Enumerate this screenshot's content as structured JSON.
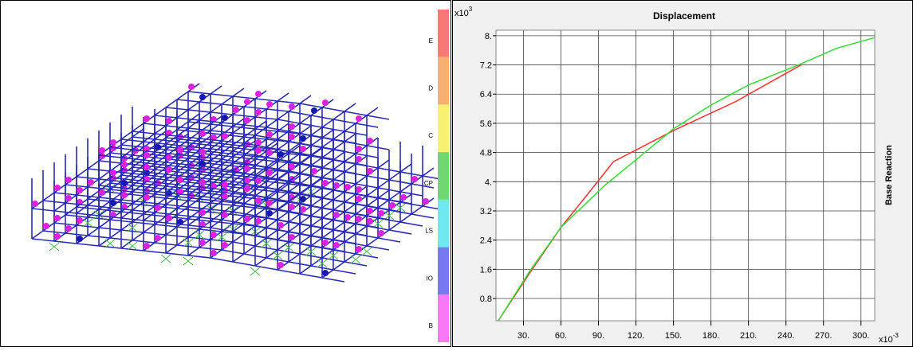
{
  "hinge_legend": {
    "labels": [
      "E",
      "D",
      "C",
      "CP",
      "LS",
      "IO",
      "B"
    ],
    "colors": [
      "#f87878",
      "#f8b070",
      "#f8f070",
      "#70d870",
      "#70e8f0",
      "#7878f0",
      "#f878f8"
    ]
  },
  "chart_data": {
    "type": "line",
    "title": "Displacement",
    "y_label": "Base Reaction",
    "y_multiplier": {
      "base": "x10",
      "exponent": "3"
    },
    "x_multiplier": {
      "base": "x10",
      "exponent": "-3"
    },
    "xlim": [
      8,
      311
    ],
    "ylim": [
      0.19,
      8.15
    ],
    "xticks": [
      {
        "value": 30,
        "label": "30."
      },
      {
        "value": 60,
        "label": "60."
      },
      {
        "value": 90,
        "label": "90."
      },
      {
        "value": 120,
        "label": "120."
      },
      {
        "value": 150,
        "label": "150."
      },
      {
        "value": 180,
        "label": "180."
      },
      {
        "value": 210,
        "label": "210."
      },
      {
        "value": 240,
        "label": "240."
      },
      {
        "value": 270,
        "label": "270."
      },
      {
        "value": 300,
        "label": "300."
      }
    ],
    "yticks": [
      0.8,
      1.6,
      2.4,
      3.2,
      {
        "value": 4,
        "label": "4."
      },
      4.8,
      5.6,
      6.4,
      7.2,
      {
        "value": 8,
        "label": "8."
      }
    ],
    "grid": true,
    "series": [
      {
        "color": "#ff3030",
        "x": [
          10,
          35,
          60,
          80,
          102,
          150,
          200,
          252
        ],
        "values": [
          0.2,
          1.5,
          2.75,
          3.6,
          4.55,
          5.4,
          6.2,
          7.2
        ]
      },
      {
        "color": "#30dd30",
        "x": [
          10,
          35,
          60,
          95,
          120,
          150,
          180,
          210,
          250,
          280,
          311
        ],
        "values": [
          0.2,
          1.55,
          2.75,
          3.9,
          4.6,
          5.45,
          6.1,
          6.65,
          7.2,
          7.65,
          7.95
        ]
      }
    ]
  }
}
